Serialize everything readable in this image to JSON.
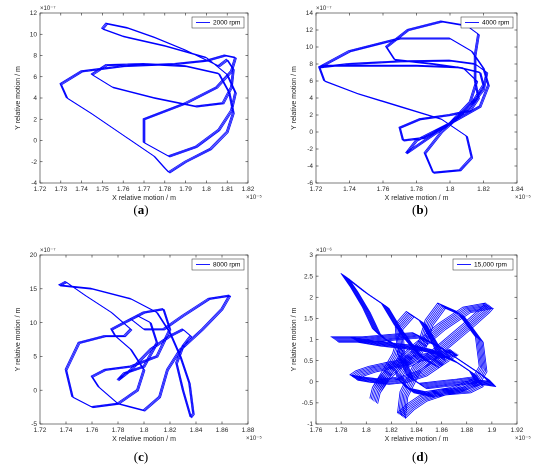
{
  "colors": {
    "trace": "#0000ff",
    "axis": "#262626",
    "background": "#ffffff"
  },
  "chart_data": [
    {
      "type": "line",
      "panel_label": "a",
      "legend": "2000 rpm",
      "legend_position": "top-right",
      "xlabel": "X relative motion / m",
      "ylabel": "Y relative motion / m",
      "x_exponent": "×10⁻⁵",
      "y_exponent": "×10⁻⁷",
      "xlim": [
        1.72,
        1.82
      ],
      "ylim": [
        -4,
        12
      ],
      "xticks": [
        "1.72",
        "1.73",
        "1.74",
        "1.75",
        "1.76",
        "1.77",
        "1.78",
        "1.79",
        "1.8",
        "1.81",
        "1.82"
      ],
      "yticks": [
        "-4",
        "-2",
        "0",
        "2",
        "4",
        "6",
        "8",
        "10",
        "12"
      ],
      "grid": false,
      "series": [
        {
          "x": [
            1.806,
            1.79,
            1.775,
            1.762,
            1.752,
            1.75,
            1.76,
            1.78,
            1.8,
            1.81,
            1.814,
            1.812,
            1.806,
            1.795,
            1.782,
            1.77,
            1.77,
            1.79,
            1.805,
            1.812,
            1.814,
            1.809,
            1.8,
            1.785,
            1.76,
            1.74,
            1.73,
            1.733,
            1.745,
            1.76,
            1.775,
            1.78,
            1.782,
            1.79,
            1.802,
            1.81,
            1.813,
            1.811,
            1.806,
            1.79,
            1.77,
            1.752,
            1.745,
            1.755,
            1.775,
            1.795,
            1.808,
            1.812,
            1.813,
            1.81,
            1.806
          ],
          "y": [
            7.0,
            8.5,
            9.7,
            10.6,
            11.0,
            10.5,
            9.8,
            8.9,
            7.8,
            6.2,
            4.5,
            2.8,
            1.0,
            -0.6,
            -1.5,
            -0.2,
            2.0,
            3.5,
            5.0,
            6.5,
            7.8,
            8.0,
            7.5,
            7.2,
            7.0,
            6.5,
            5.3,
            4.0,
            2.5,
            0.5,
            -1.5,
            -2.6,
            -3.0,
            -2.0,
            -0.8,
            0.8,
            2.6,
            4.5,
            6.3,
            7.0,
            7.2,
            7.1,
            6.2,
            5.0,
            4.0,
            3.2,
            3.5,
            5.0,
            6.7,
            7.6,
            7.0
          ]
        }
      ]
    },
    {
      "type": "line",
      "panel_label": "b",
      "legend": "4000 rpm",
      "legend_position": "top-right",
      "xlabel": "X relative motion / m",
      "ylabel": "Y relative motion / m",
      "x_exponent": "×10⁻⁵",
      "y_exponent": "×10⁻⁷",
      "xlim": [
        1.72,
        1.84
      ],
      "ylim": [
        -6,
        14
      ],
      "xticks": [
        "1.72",
        "1.74",
        "1.76",
        "1.78",
        "1.8",
        "1.82",
        "1.84"
      ],
      "yticks": [
        "-6",
        "-4",
        "-2",
        "0",
        "2",
        "4",
        "6",
        "8",
        "10",
        "12",
        "14"
      ],
      "grid": false,
      "series": [
        {
          "x": [
            1.722,
            1.74,
            1.77,
            1.8,
            1.815,
            1.822,
            1.82,
            1.812,
            1.8,
            1.785,
            1.772,
            1.77,
            1.782,
            1.8,
            1.812,
            1.817,
            1.815,
            1.815,
            1.817,
            1.81,
            1.795,
            1.775,
            1.762,
            1.767,
            1.79,
            1.808,
            1.816,
            1.812,
            1.8,
            1.785,
            1.774,
            1.78,
            1.8,
            1.818,
            1.823,
            1.82,
            1.813,
            1.8,
            1.77,
            1.74,
            1.722,
            1.725,
            1.745,
            1.77,
            1.795,
            1.81,
            1.813,
            1.806,
            1.79,
            1.785,
            1.795,
            1.812,
            1.82,
            1.818,
            1.805,
            1.78,
            1.75,
            1.725,
            1.722
          ],
          "y": [
            7.6,
            8.0,
            8.3,
            8.4,
            8.0,
            7.0,
            5.0,
            3.0,
            1.0,
            -0.7,
            -1.0,
            0.5,
            1.5,
            2.0,
            2.5,
            4.0,
            6.0,
            9.0,
            11.5,
            12.5,
            13.0,
            12.0,
            10.0,
            8.5,
            8.0,
            7.5,
            6.0,
            3.5,
            1.0,
            -1.0,
            -2.5,
            -1.0,
            1.0,
            3.0,
            5.5,
            7.5,
            9.5,
            11.0,
            11.0,
            9.5,
            7.6,
            6.0,
            4.5,
            3.0,
            1.5,
            -0.5,
            -3.0,
            -4.5,
            -4.8,
            -2.5,
            0.0,
            3.0,
            5.5,
            7.0,
            7.6,
            7.8,
            7.8,
            7.8,
            7.6
          ]
        }
      ]
    },
    {
      "type": "line",
      "panel_label": "c",
      "legend": "8000 rpm",
      "legend_position": "top-right",
      "xlabel": "X relative motion / m",
      "ylabel": "Y relative motion / m",
      "x_exponent": "×10⁻⁵",
      "y_exponent": "×10⁻⁷",
      "xlim": [
        1.72,
        1.88
      ],
      "ylim": [
        -5,
        20
      ],
      "xticks": [
        "1.72",
        "1.74",
        "1.76",
        "1.78",
        "1.8",
        "1.82",
        "1.84",
        "1.86",
        "1.88"
      ],
      "yticks": [
        "-5",
        "0",
        "5",
        "10",
        "15",
        "20"
      ],
      "grid": false,
      "series": [
        {
          "x": [
            1.735,
            1.76,
            1.79,
            1.81,
            1.82,
            1.828,
            1.835,
            1.838,
            1.836,
            1.83,
            1.825,
            1.83,
            1.836,
            1.83,
            1.82,
            1.805,
            1.79,
            1.78,
            1.785,
            1.8,
            1.81,
            1.805,
            1.795,
            1.79,
            1.8,
            1.815,
            1.83,
            1.85,
            1.866,
            1.86,
            1.845,
            1.828,
            1.818,
            1.812,
            1.8,
            1.78,
            1.765,
            1.76,
            1.77,
            1.79,
            1.81,
            1.82,
            1.815,
            1.8,
            1.785,
            1.775,
            1.778,
            1.79,
            1.8,
            1.795,
            1.78,
            1.76,
            1.745,
            1.74,
            1.75,
            1.77,
            1.785,
            1.79,
            1.775,
            1.755,
            1.74,
            1.735
          ],
          "y": [
            15.5,
            15.0,
            13.5,
            11.5,
            8.5,
            5.0,
            1.0,
            -3.5,
            -4.0,
            0.0,
            4.0,
            6.5,
            8.0,
            9.0,
            8.0,
            6.0,
            3.0,
            1.5,
            2.5,
            3.5,
            7.0,
            10.0,
            11.0,
            10.5,
            9.0,
            9.0,
            11.0,
            13.5,
            14.0,
            12.0,
            9.0,
            6.0,
            3.0,
            -1.0,
            -3.0,
            -2.0,
            0.5,
            2.0,
            3.0,
            3.5,
            5.0,
            9.0,
            12.0,
            11.5,
            10.0,
            9.0,
            8.0,
            6.0,
            3.0,
            0.0,
            -2.0,
            -2.5,
            -1.0,
            3.0,
            7.0,
            8.0,
            8.0,
            9.0,
            11.5,
            14.0,
            16.0,
            15.5
          ]
        }
      ]
    },
    {
      "type": "line",
      "panel_label": "d",
      "legend": "15,000 rpm",
      "legend_position": "top-right",
      "xlabel": "X relative motion / m",
      "ylabel": "Y relative motion / m",
      "x_exponent": "×10⁻⁵",
      "y_exponent": "×10⁻⁶",
      "xlim": [
        1.76,
        1.92
      ],
      "ylim": [
        -1,
        3
      ],
      "xticks": [
        "1.76",
        "1.78",
        "1.8",
        "1.82",
        "1.84",
        "1.86",
        "1.88",
        "1.9",
        "1.92"
      ],
      "yticks": [
        "-1",
        "-0.5",
        "0",
        "0.5",
        "1",
        "1.5",
        "2",
        "2.5",
        "3"
      ],
      "grid": false,
      "series": [
        {
          "x": [
            1.775,
            1.79,
            1.8,
            1.81,
            1.825,
            1.84,
            1.855,
            1.87,
            1.885,
            1.89,
            1.88,
            1.86,
            1.845,
            1.835,
            1.828,
            1.83,
            1.84,
            1.86,
            1.88,
            1.895,
            1.898,
            1.88,
            1.86,
            1.84,
            1.825,
            1.815,
            1.808,
            1.806,
            1.808,
            1.816,
            1.824,
            1.826,
            1.822,
            1.815,
            1.808,
            1.8,
            1.79,
            1.783,
            1.785,
            1.8,
            1.815,
            1.825,
            1.835,
            1.845,
            1.855,
            1.86,
            1.855,
            1.845,
            1.835,
            1.826,
            1.828,
            1.835,
            1.845,
            1.86,
            1.875,
            1.888,
            1.893,
            1.89,
            1.875,
            1.86,
            1.85,
            1.845,
            1.838,
            1.83,
            1.82,
            1.805,
            1.795,
            1.79,
            1.8,
            1.815,
            1.83,
            1.845,
            1.86,
            1.87,
            1.86,
            1.84,
            1.83,
            1.826,
            1.828,
            1.835,
            1.85,
            1.87,
            1.888,
            1.9,
            1.895,
            1.88,
            1.86,
            1.84,
            1.82,
            1.8,
            1.785,
            1.775
          ],
          "y": [
            1.0,
            1.0,
            0.95,
            0.9,
            0.85,
            0.8,
            0.7,
            0.5,
            0.2,
            -0.05,
            -0.2,
            -0.25,
            -0.4,
            -0.6,
            -0.8,
            -0.3,
            0.3,
            0.8,
            1.3,
            1.7,
            1.8,
            1.7,
            1.3,
            0.8,
            0.4,
            0.1,
            -0.2,
            -0.45,
            -0.2,
            0.2,
            0.6,
            0.8,
            0.9,
            1.0,
            1.2,
            1.7,
            2.2,
            2.5,
            2.45,
            2.1,
            1.8,
            1.3,
            0.9,
            0.55,
            0.4,
            0.55,
            0.9,
            1.4,
            1.6,
            1.3,
            0.6,
            0.1,
            -0.1,
            -0.05,
            0.0,
            0.05,
            0.3,
            1.0,
            1.6,
            1.8,
            1.4,
            0.9,
            0.6,
            0.45,
            0.4,
            0.3,
            0.2,
            0.1,
            0.05,
            0.0,
            0.05,
            0.2,
            0.5,
            0.7,
            0.65,
            0.55,
            0.4,
            0.2,
            0.0,
            -0.2,
            -0.3,
            -0.2,
            0.0,
            -0.05,
            0.1,
            0.4,
            0.8,
            1.1,
            1.05,
            1.0,
            1.0,
            1.0
          ]
        }
      ]
    }
  ]
}
